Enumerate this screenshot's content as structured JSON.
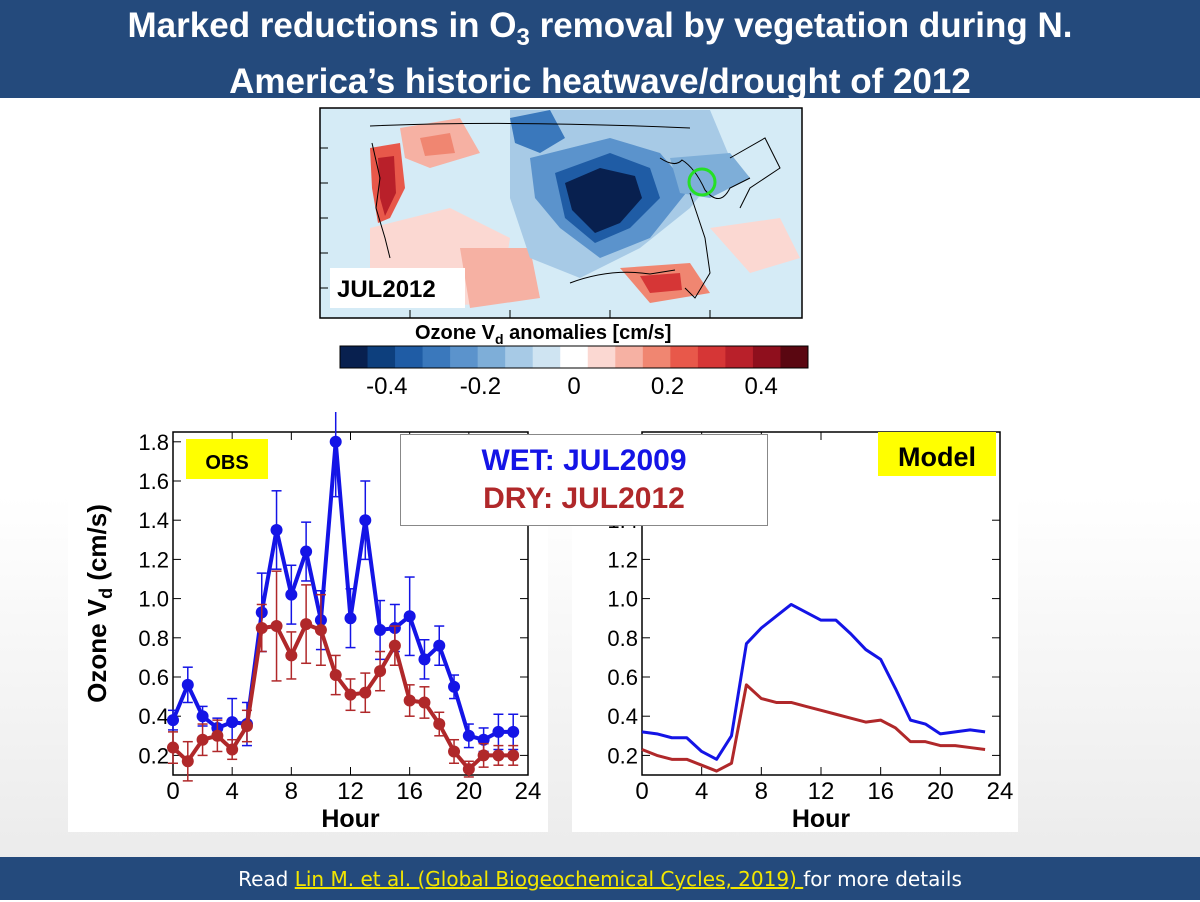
{
  "header": {
    "title_line1_pre": "Marked reductions in O",
    "title_line1_sub": "3",
    "title_line1_post": " removal by vegetation during N.",
    "title_line2": "America’s historic heatwave/drought of 2012"
  },
  "map": {
    "label": "JUL2012",
    "colorbar_title": "Ozone V",
    "colorbar_title_sub": "d",
    "colorbar_title_post": "  anomalies [cm/s]",
    "colorbar_ticks": [
      "-0.4",
      "-0.2",
      "0",
      "0.2",
      "0.4"
    ],
    "colorbar_colors": [
      "#08204f",
      "#0d3f7d",
      "#1f5ca5",
      "#3a78bc",
      "#5b93cc",
      "#7eaed8",
      "#a7cae6",
      "#cfe4f2",
      "#ffffff",
      "#fbd8d2",
      "#f6b1a3",
      "#f08671",
      "#e8584a",
      "#d63636",
      "#b9202a",
      "#8f0f1d",
      "#5a0711"
    ]
  },
  "legend": {
    "wet": "WET: JUL2009",
    "dry": "DRY: JUL2012",
    "wet_color": "#1414e6",
    "dry_color": "#b0282a"
  },
  "footer": {
    "prefix": "Read ",
    "link": "Lin M. et al. (Global Biogeochemical Cycles, 2019) ",
    "suffix": "for more details"
  },
  "chart_data": [
    {
      "type": "line",
      "panel_label": "OBS",
      "xlabel": "Hour",
      "ylabel": "Ozone Vd (cm/s)",
      "ylabel_main": "Ozone V",
      "ylabel_sub": "d",
      "ylabel_unit": " (cm/s)",
      "xlim": [
        0,
        24
      ],
      "ylim": [
        0.1,
        1.85
      ],
      "x_ticks": [
        0,
        4,
        8,
        12,
        16,
        20,
        24
      ],
      "y_ticks": [
        0.2,
        0.4,
        0.6,
        0.8,
        1.0,
        1.2,
        1.4,
        1.6,
        1.8
      ],
      "x": [
        0,
        1,
        2,
        3,
        4,
        5,
        6,
        7,
        8,
        9,
        10,
        11,
        12,
        13,
        14,
        15,
        16,
        17,
        18,
        19,
        20,
        21,
        22,
        23
      ],
      "series": [
        {
          "name": "WET: JUL2009",
          "color": "#1414e6",
          "values": [
            0.38,
            0.56,
            0.4,
            0.34,
            0.37,
            0.36,
            0.93,
            1.35,
            1.02,
            1.24,
            0.89,
            1.8,
            0.9,
            1.4,
            0.84,
            0.85,
            0.91,
            0.69,
            0.76,
            0.55,
            0.3,
            0.28,
            0.32,
            0.32
          ],
          "error": [
            0.05,
            0.09,
            0.05,
            0.05,
            0.12,
            0.11,
            0.2,
            0.2,
            0.15,
            0.15,
            0.15,
            0.28,
            0.15,
            0.2,
            0.15,
            0.12,
            0.2,
            0.1,
            0.1,
            0.06,
            0.06,
            0.06,
            0.09,
            0.09
          ]
        },
        {
          "name": "DRY: JUL2012",
          "color": "#b0282a",
          "values": [
            0.24,
            0.17,
            0.28,
            0.3,
            0.23,
            0.35,
            0.85,
            0.86,
            0.71,
            0.87,
            0.84,
            0.61,
            0.51,
            0.52,
            0.63,
            0.76,
            0.48,
            0.47,
            0.36,
            0.22,
            0.13,
            0.2,
            0.2,
            0.2
          ],
          "error": [
            0.08,
            0.1,
            0.08,
            0.08,
            0.05,
            0.08,
            0.12,
            0.28,
            0.12,
            0.2,
            0.18,
            0.1,
            0.08,
            0.1,
            0.1,
            0.1,
            0.08,
            0.08,
            0.06,
            0.06,
            0.04,
            0.06,
            0.05,
            0.05
          ]
        }
      ]
    },
    {
      "type": "line",
      "panel_label": "Model",
      "xlabel": "Hour",
      "ylabel": "",
      "xlim": [
        0,
        24
      ],
      "ylim": [
        0.1,
        1.85
      ],
      "x_ticks": [
        0,
        4,
        8,
        12,
        16,
        20,
        24
      ],
      "y_ticks": [
        0.2,
        0.4,
        0.6,
        0.8,
        1.0,
        1.2,
        1.4
      ],
      "x": [
        0,
        1,
        2,
        3,
        4,
        5,
        6,
        7,
        8,
        9,
        10,
        11,
        12,
        13,
        14,
        15,
        16,
        17,
        18,
        19,
        20,
        21,
        22,
        23
      ],
      "series": [
        {
          "name": "WET: JUL2009",
          "color": "#1414e6",
          "values": [
            0.32,
            0.31,
            0.29,
            0.29,
            0.22,
            0.18,
            0.3,
            0.77,
            0.85,
            0.91,
            0.97,
            0.93,
            0.89,
            0.89,
            0.82,
            0.74,
            0.69,
            0.54,
            0.38,
            0.36,
            0.31,
            0.32,
            0.33,
            0.32
          ]
        },
        {
          "name": "DRY: JUL2012",
          "color": "#b0282a",
          "values": [
            0.23,
            0.2,
            0.18,
            0.18,
            0.15,
            0.12,
            0.16,
            0.56,
            0.49,
            0.47,
            0.47,
            0.45,
            0.43,
            0.41,
            0.39,
            0.37,
            0.38,
            0.34,
            0.27,
            0.27,
            0.25,
            0.25,
            0.24,
            0.23
          ]
        }
      ]
    }
  ]
}
